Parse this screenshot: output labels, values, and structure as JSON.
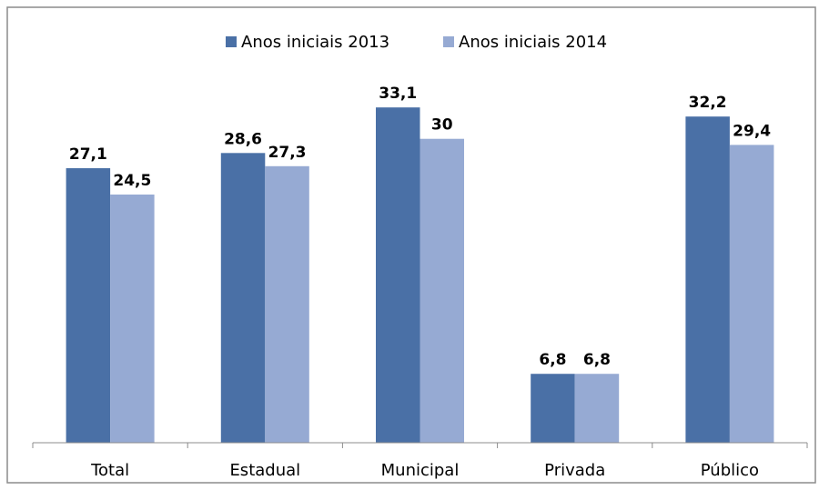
{
  "chart_data": {
    "type": "bar",
    "categories": [
      "Total",
      "Estadual",
      "Municipal",
      "Privada",
      "Público"
    ],
    "series": [
      {
        "name": "Anos iniciais 2013",
        "color": "#4a70a6",
        "values": [
          27.1,
          28.6,
          33.1,
          6.8,
          32.2
        ],
        "value_labels": [
          "27,1",
          "28,6",
          "33,1",
          "6,8",
          "32,2"
        ]
      },
      {
        "name": "Anos iniciais 2014",
        "color": "#96aad3",
        "values": [
          24.5,
          27.3,
          30,
          6.8,
          29.4
        ],
        "value_labels": [
          "24,5",
          "27,3",
          "30",
          "6,8",
          "29,4"
        ]
      }
    ],
    "ylim": [
      0,
      35
    ],
    "legend": "top"
  }
}
